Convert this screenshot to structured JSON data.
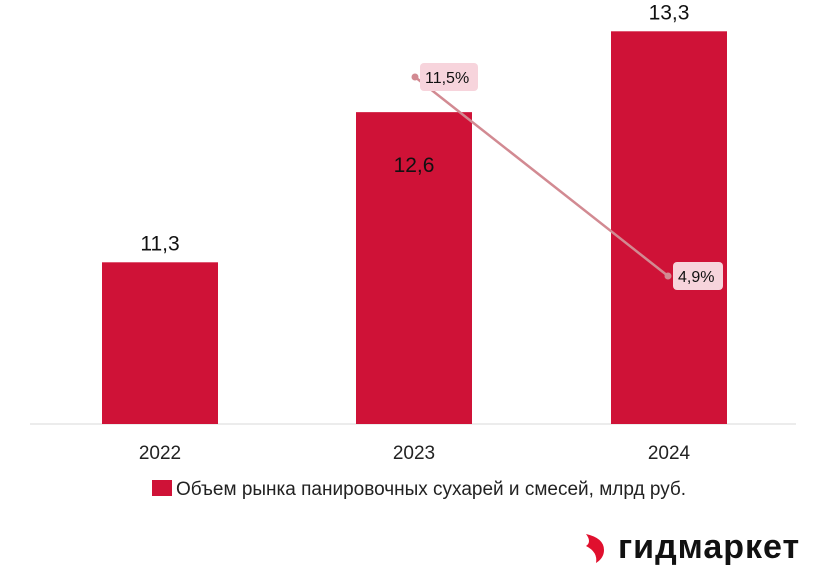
{
  "chart_data": {
    "type": "bar",
    "categories": [
      "2022",
      "2023",
      "2024"
    ],
    "series": [
      {
        "name": "Объем рынка панировочных сухарей и смесей, млрд руб.",
        "values": [
          11.3,
          12.6,
          13.3
        ],
        "labels": [
          "11,3",
          "12,6",
          "13,3"
        ],
        "color": "#cf1237"
      }
    ],
    "growth_line": {
      "x": [
        "2023",
        "2024"
      ],
      "values": [
        11.5,
        4.9
      ],
      "labels": [
        "11,5%",
        "4,9%"
      ],
      "color": "#d28a92"
    },
    "legend_placement": "bottom",
    "grid": false
  },
  "legend": {
    "label": "Объем рынка панировочных сухарей и смесей, млрд руб."
  },
  "logo": {
    "text": "гидмаркет"
  }
}
